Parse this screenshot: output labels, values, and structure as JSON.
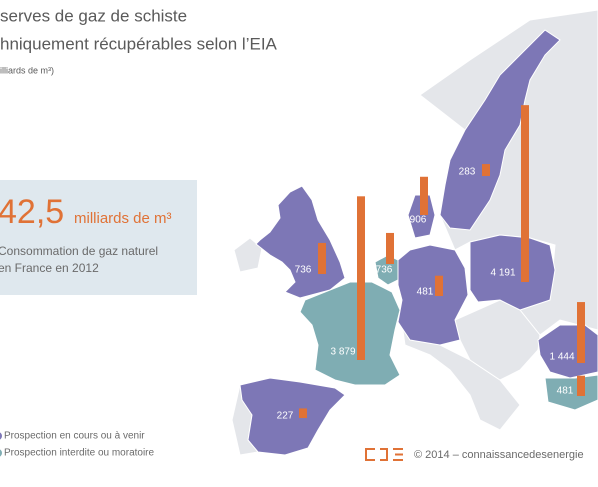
{
  "map": {
    "title_lines": [
      "serves de gaz de schiste",
      "hniquement récupérables selon l’EIA"
    ],
    "subtitle": "illiards de m³)",
    "highlight": {
      "value": "42,5",
      "unit": "milliards de m³",
      "caption_lines": [
        "Consommation de gaz naturel",
        "en France en 2012"
      ]
    },
    "legend": [
      {
        "name": "Prospection en cours ou à venir",
        "color": "#7d77b6"
      },
      {
        "name": "Prospection interdite ou moratoire",
        "color": "#7fadb3"
      }
    ],
    "bar_color": "#e07236",
    "regions": {
      "values": [
        736,
        3879,
        736,
        906,
        283,
        481,
        4191,
        227,
        1444,
        481
      ],
      "value_labels": [
        "736",
        "3 879",
        "736",
        "906",
        "283",
        "481",
        "4 191",
        "227",
        "1 444",
        "481"
      ],
      "colors": [
        "#7d77b6",
        "#7fadb3",
        "#7fadb3",
        "#7d77b6",
        "#7d77b6",
        "#7d77b6",
        "#7d77b6",
        "#7d77b6",
        "#7d77b6",
        "#7fadb3"
      ]
    },
    "footer": "© 2014 – connaissancedesenergie"
  }
}
